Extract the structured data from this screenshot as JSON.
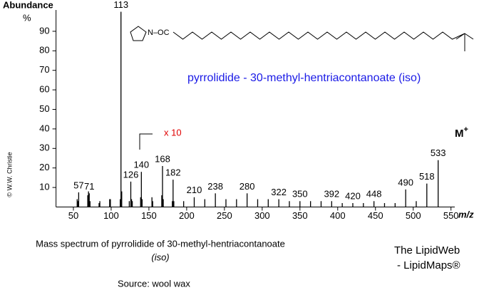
{
  "chart_data": {
    "type": "stick",
    "y_label": "Abundance",
    "y_unit": "%",
    "x_label": "m/z",
    "title": "pyrrolidide  -  30-methyl-hentriacontanoate  (iso)",
    "scale_note": "x 10",
    "molecular_ion": {
      "text": "M",
      "sup": "+"
    },
    "structure_label": "N–OC",
    "x": [
      57,
      71,
      113,
      126,
      140,
      168,
      182,
      210,
      238,
      280,
      322,
      350,
      392,
      420,
      448,
      490,
      518,
      533
    ],
    "values": [
      7.5,
      7,
      100,
      13,
      18,
      21,
      14,
      5,
      7,
      7,
      4,
      3,
      3,
      2,
      3,
      9,
      12,
      24
    ],
    "minor_x": [
      55,
      56,
      69,
      70,
      72,
      84,
      85,
      98,
      99,
      112,
      114,
      124,
      127,
      128,
      139,
      141,
      154,
      155,
      167,
      169,
      181,
      183,
      196,
      224,
      252,
      266,
      294,
      308,
      336,
      364,
      378,
      406,
      434,
      462,
      476,
      504
    ],
    "minor_values": [
      4,
      3,
      6,
      8,
      3,
      2,
      3,
      4,
      4,
      4,
      8,
      3,
      4,
      3,
      5,
      4,
      5,
      3,
      6,
      4,
      3,
      3,
      3,
      4,
      4,
      4,
      4,
      4,
      3,
      3,
      3,
      2,
      2,
      2,
      2,
      3
    ],
    "xlim": [
      27,
      555
    ],
    "ylim": [
      0,
      100
    ],
    "xticks": [
      50,
      100,
      150,
      200,
      250,
      300,
      350,
      400,
      450,
      500,
      550
    ],
    "yticks": [
      10,
      20,
      30,
      40,
      50,
      60,
      70,
      80,
      90
    ],
    "color": "#000000",
    "title_color": "#1a1ae6",
    "note_color": "#e00000"
  },
  "copyright": "© W.W. Christie",
  "caption": {
    "line1": "Mass spectrum of pyrrolidide of 30-methyl-hentriacontanoate",
    "line2": "(iso)"
  },
  "credit": {
    "line1": "The LipidWeb",
    "line2": "- LipidMaps®"
  },
  "source": "Source:   wool wax"
}
